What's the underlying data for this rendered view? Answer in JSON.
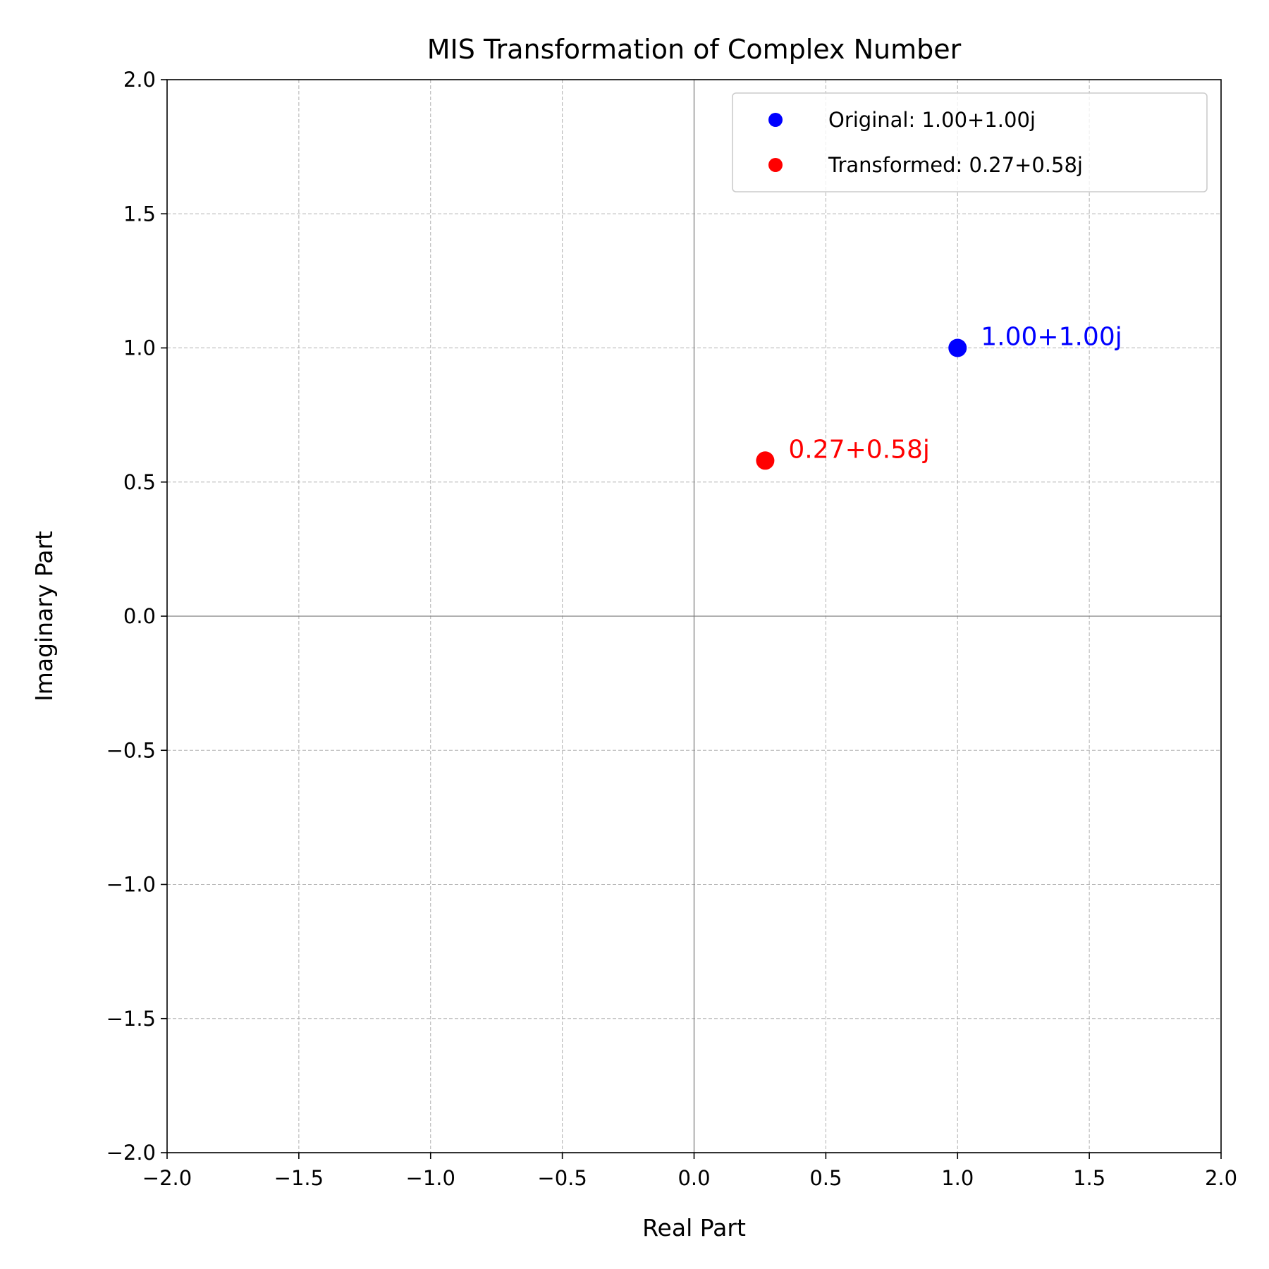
{
  "chart_data": {
    "type": "scatter",
    "title": "MIS Transformation of Complex Number",
    "xlabel": "Real Part",
    "ylabel": "Imaginary Part",
    "xlim": [
      -2.0,
      2.0
    ],
    "ylim": [
      -2.0,
      2.0
    ],
    "xticks": [
      -2.0,
      -1.5,
      -1.0,
      -0.5,
      0.0,
      0.5,
      1.0,
      1.5,
      2.0
    ],
    "yticks": [
      -2.0,
      -1.5,
      -1.0,
      -0.5,
      0.0,
      0.5,
      1.0,
      1.5,
      2.0
    ],
    "xtick_labels": [
      "−2.0",
      "−1.5",
      "−1.0",
      "−0.5",
      "0.0",
      "0.5",
      "1.0",
      "1.5",
      "2.0"
    ],
    "ytick_labels": [
      "−2.0",
      "−1.5",
      "−1.0",
      "−0.5",
      "0.0",
      "0.5",
      "1.0",
      "1.5",
      "2.0"
    ],
    "grid": true,
    "legend_position": "top-right",
    "series": [
      {
        "name": "Original: 1.00+1.00j",
        "color": "#0000ff",
        "x": 1.0,
        "y": 1.0,
        "annotation": "1.00+1.00j"
      },
      {
        "name": "Transformed: 0.27+0.58j",
        "color": "#ff0000",
        "x": 0.27,
        "y": 0.58,
        "annotation": "0.27+0.58j"
      }
    ]
  }
}
